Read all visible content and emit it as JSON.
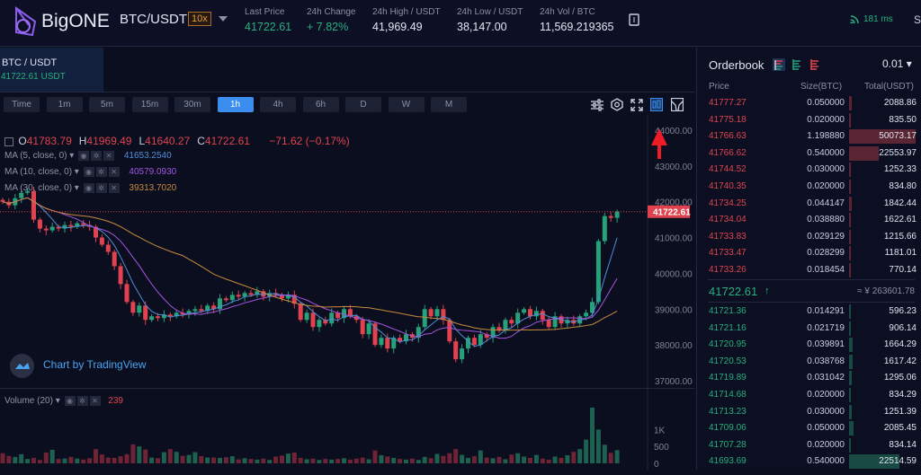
{
  "header": {
    "brand": "BigONE",
    "pair": "BTC/USDT",
    "leverage": "10x",
    "stats": [
      {
        "label": "Last Price",
        "value": "41722.61",
        "color": "green"
      },
      {
        "label": "24h Change",
        "value": "+ 7.82%",
        "color": "green"
      },
      {
        "label": "24h High / USDT",
        "value": "41,969.49"
      },
      {
        "label": "24h Low / USDT",
        "value": "38,147.00"
      },
      {
        "label": "24h Vol / BTC",
        "value": "11,569.219365"
      }
    ],
    "latency": "181 ms",
    "cut_label": "S"
  },
  "pair_tab": {
    "pair": "BTC / USDT",
    "price": "41722.61 USDT"
  },
  "timeframes": [
    "Time",
    "1m",
    "5m",
    "15m",
    "30m",
    "1h",
    "4h",
    "6h",
    "D",
    "W",
    "M"
  ],
  "active_timeframe": "1h",
  "legend": {
    "ohlc": [
      {
        "k": "O",
        "v": "41783.79"
      },
      {
        "k": "H",
        "v": "41969.49"
      },
      {
        "k": "L",
        "v": "41640.27"
      },
      {
        "k": "C",
        "v": "41722.61"
      }
    ],
    "change": "−71.62 (−0.17%)",
    "ma": [
      {
        "label": "MA (5, close, 0)",
        "value": "41653.2540",
        "color": "#4f8fd8"
      },
      {
        "label": "MA (10, close, 0)",
        "value": "40579.0930",
        "color": "#a456e0"
      },
      {
        "label": "MA (30, close, 0)",
        "value": "39313.7020",
        "color": "#c98a3e"
      }
    ]
  },
  "watermark": "Chart by TradingView",
  "volume_legend": {
    "label": "Volume (20)",
    "value": "239"
  },
  "chart_data": {
    "type": "candlestick",
    "ylim": [
      36800,
      44400
    ],
    "yticks": [
      "44000.00",
      "43000.00",
      "42000.00",
      "41000.00",
      "40000.00",
      "39000.00",
      "38000.00",
      "37000.00"
    ],
    "last_price": "41722.61",
    "closes": [
      42000,
      41900,
      42100,
      42250,
      42300,
      41500,
      41250,
      41200,
      41300,
      41250,
      41350,
      41300,
      41400,
      41350,
      41300,
      41000,
      40800,
      40600,
      40200,
      39700,
      39200,
      38900,
      39100,
      38700,
      38800,
      38750,
      38850,
      38800,
      38900,
      38850,
      38950,
      39000,
      38950,
      39100,
      39000,
      39300,
      39250,
      39400,
      39350,
      39450,
      39400,
      39500,
      39350,
      39450,
      39400,
      39300,
      39400,
      39150,
      38700,
      38900,
      38500,
      38700,
      38600,
      38900,
      38750,
      39000,
      38800,
      38700,
      38300,
      38600,
      38000,
      38200,
      37900,
      38200,
      38100,
      38300,
      38200,
      38500,
      39000,
      38800,
      39000,
      38700,
      38100,
      37600,
      37900,
      38200,
      38000,
      38300,
      38200,
      38500,
      38400,
      38700,
      38600,
      38900,
      39000,
      38800,
      38950,
      38700,
      38500,
      38800,
      38600,
      38700,
      38600,
      38800,
      38900,
      39200,
      40900,
      41600,
      41550,
      41722.61
    ],
    "volume": [
      300,
      220,
      190,
      270,
      130,
      160,
      100,
      320,
      400,
      130,
      140,
      190,
      140,
      110,
      150,
      420,
      260,
      170,
      160,
      210,
      270,
      560,
      500,
      410,
      170,
      150,
      330,
      420,
      340,
      220,
      250,
      330,
      210,
      170,
      170,
      160,
      180,
      210,
      120,
      150,
      130,
      110,
      140,
      100,
      200,
      230,
      290,
      320,
      160,
      120,
      140,
      100,
      130,
      110,
      130,
      150,
      110,
      140,
      170,
      120,
      380,
      240,
      200,
      160,
      130,
      110,
      140,
      100,
      190,
      150,
      280,
      220,
      300,
      420,
      250,
      160,
      210,
      380,
      170,
      150,
      190,
      120,
      260,
      300,
      200,
      160,
      250,
      140,
      110,
      200,
      160,
      240,
      340,
      420,
      700,
      1650,
      1000,
      550,
      310,
      390
    ],
    "volume_yticks": [
      "1K",
      "500",
      "0"
    ],
    "volume_ylim": [
      0,
      1700
    ]
  },
  "orderbook": {
    "title": "Orderbook",
    "precision": "0.01",
    "cols": [
      "Price",
      "Size(BTC)",
      "Total(USDT)"
    ],
    "asks": [
      [
        "41777.27",
        "0.050000",
        "2088.86"
      ],
      [
        "41775.18",
        "0.020000",
        "835.50"
      ],
      [
        "41766.63",
        "1.198880",
        "50073.17"
      ],
      [
        "41766.62",
        "0.540000",
        "22553.97"
      ],
      [
        "41744.52",
        "0.030000",
        "1252.33"
      ],
      [
        "41740.35",
        "0.020000",
        "834.80"
      ],
      [
        "41734.25",
        "0.044147",
        "1842.44"
      ],
      [
        "41734.04",
        "0.038880",
        "1622.61"
      ],
      [
        "41733.83",
        "0.029129",
        "1215.66"
      ],
      [
        "41733.47",
        "0.028299",
        "1181.01"
      ],
      [
        "41733.26",
        "0.018454",
        "770.14"
      ]
    ],
    "last": "41722.61",
    "last_arrow": "↑",
    "cny": "≈ ¥ 263601.78",
    "bids": [
      [
        "41721.36",
        "0.014291",
        "596.23"
      ],
      [
        "41721.16",
        "0.021719",
        "906.14"
      ],
      [
        "41720.95",
        "0.039891",
        "1664.29"
      ],
      [
        "41720.53",
        "0.038768",
        "1617.42"
      ],
      [
        "41719.89",
        "0.031042",
        "1295.06"
      ],
      [
        "41714.68",
        "0.020000",
        "834.29"
      ],
      [
        "41713.23",
        "0.030000",
        "1251.39"
      ],
      [
        "41709.06",
        "0.050000",
        "2085.45"
      ],
      [
        "41707.28",
        "0.020000",
        "834.14"
      ],
      [
        "41693.69",
        "0.540000",
        "22514.59"
      ]
    ]
  },
  "colors": {
    "up": "#26a17a",
    "down": "#e0434f",
    "accent": "#3b8ef0"
  }
}
